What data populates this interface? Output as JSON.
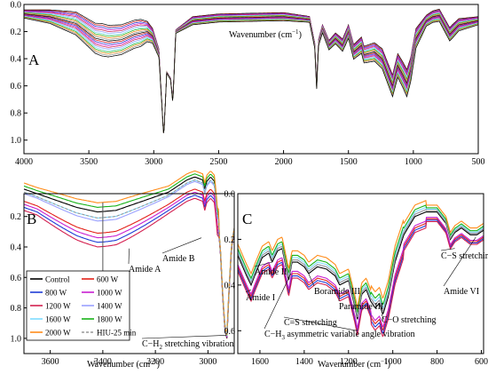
{
  "colors": {
    "control": "#000000",
    "w600": "#e32119",
    "w800": "#1f3cd6",
    "w1000": "#c81fd0",
    "w1200": "#d42050",
    "w1400": "#9aa0ff",
    "w1600": "#7fdcff",
    "w1800": "#19b319",
    "w2000": "#ff8c1a",
    "hiu": "#999999"
  },
  "chart_data": [
    {
      "panel_label": "A",
      "type": "line",
      "xlabel_prefix": "Wavenumber (cm",
      "xlabel_sup": "−1",
      "xlabel_suffix": ")",
      "xlim": [
        4000,
        500
      ],
      "ylim": [
        0.0,
        1.1
      ],
      "x_ticks": [
        "4000",
        "3500",
        "3000",
        "2500",
        "2000",
        "1500",
        "1000",
        "500"
      ],
      "x_tick_values": [
        4000,
        3500,
        3000,
        2500,
        2000,
        1500,
        1000,
        500
      ],
      "y_ticks": [
        "0.0",
        "0.2",
        "0.4",
        "0.6",
        "0.8",
        "1.0"
      ],
      "y_tick_values": [
        0,
        0.2,
        0.4,
        0.6,
        0.8,
        1.0
      ],
      "series_count": 21,
      "base_profile": [
        [
          4000,
          0.07
        ],
        [
          3800,
          0.09
        ],
        [
          3600,
          0.14
        ],
        [
          3450,
          0.25
        ],
        [
          3350,
          0.27
        ],
        [
          3250,
          0.26
        ],
        [
          3150,
          0.22
        ],
        [
          3050,
          0.2
        ],
        [
          3010,
          0.23
        ],
        [
          2960,
          0.36
        ],
        [
          2923,
          0.98
        ],
        [
          2900,
          0.5
        ],
        [
          2870,
          0.55
        ],
        [
          2853,
          0.72
        ],
        [
          2830,
          0.2
        ],
        [
          2700,
          0.12
        ],
        [
          2500,
          0.1
        ],
        [
          2000,
          0.09
        ],
        [
          1800,
          0.11
        ],
        [
          1760,
          0.3
        ],
        [
          1745,
          0.6
        ],
        [
          1730,
          0.28
        ],
        [
          1700,
          0.18
        ],
        [
          1650,
          0.3
        ],
        [
          1600,
          0.25
        ],
        [
          1545,
          0.3
        ],
        [
          1500,
          0.2
        ],
        [
          1460,
          0.35
        ],
        [
          1400,
          0.3
        ],
        [
          1380,
          0.37
        ],
        [
          1300,
          0.35
        ],
        [
          1240,
          0.4
        ],
        [
          1160,
          0.6
        ],
        [
          1120,
          0.45
        ],
        [
          1080,
          0.52
        ],
        [
          1050,
          0.58
        ],
        [
          1020,
          0.48
        ],
        [
          980,
          0.25
        ],
        [
          900,
          0.12
        ],
        [
          850,
          0.09
        ],
        [
          800,
          0.08
        ],
        [
          720,
          0.22
        ],
        [
          650,
          0.15
        ],
        [
          500,
          0.12
        ]
      ],
      "spread_profile": [
        [
          4000,
          0.03
        ],
        [
          3800,
          0.05
        ],
        [
          3400,
          0.12
        ],
        [
          3100,
          0.1
        ],
        [
          3000,
          0.05
        ],
        [
          2960,
          0.03
        ],
        [
          2930,
          0.0
        ],
        [
          2700,
          0.03
        ],
        [
          2000,
          0.03
        ],
        [
          1760,
          0.02
        ],
        [
          1700,
          0.03
        ],
        [
          1400,
          0.06
        ],
        [
          1160,
          0.08
        ],
        [
          1050,
          0.1
        ],
        [
          900,
          0.04
        ],
        [
          700,
          0.05
        ],
        [
          500,
          0.03
        ]
      ]
    },
    {
      "panel_label": "B",
      "type": "line",
      "xlabel_prefix": "Wavenumber (cm",
      "xlabel_sup": "−1",
      "xlabel_suffix": ")",
      "xlim": [
        3700,
        2900
      ],
      "ylim": [
        0.05,
        1.1
      ],
      "x_ticks": [
        "3600",
        "3400",
        "3200",
        "3000"
      ],
      "x_tick_values": [
        3600,
        3400,
        3200,
        3000
      ],
      "y_ticks": [
        "0.2",
        "0.4",
        "0.6",
        "0.8",
        "1.0"
      ],
      "y_tick_values": [
        0.2,
        0.4,
        0.6,
        0.8,
        1.0
      ],
      "vline_x": 3400,
      "series": [
        {
          "name": "Control",
          "color": "#000000",
          "base_off": 0.28,
          "depth": 0.0,
          "dash": ""
        },
        {
          "name": "600 W",
          "color": "#e32119",
          "base_off": 0.36,
          "depth": 0.06,
          "dash": ""
        },
        {
          "name": "800 W",
          "color": "#1f3cd6",
          "base_off": 0.4,
          "depth": 0.08,
          "dash": ""
        },
        {
          "name": "1000 W",
          "color": "#c81fd0",
          "base_off": 0.38,
          "depth": 0.07,
          "dash": ""
        },
        {
          "name": "1200 W",
          "color": "#d42050",
          "base_off": 0.42,
          "depth": 0.09,
          "dash": ""
        },
        {
          "name": "1400 W",
          "color": "#9aa0ff",
          "base_off": 0.31,
          "depth": 0.03,
          "dash": ""
        },
        {
          "name": "1600 W",
          "color": "#7fdcff",
          "base_off": 0.3,
          "depth": 0.02,
          "dash": ""
        },
        {
          "name": "1800 W",
          "color": "#19b319",
          "base_off": 0.26,
          "depth": -0.01,
          "dash": ""
        },
        {
          "name": "2000 W",
          "color": "#ff8c1a",
          "base_off": 0.24,
          "depth": -0.02,
          "dash": ""
        },
        {
          "name": "HIU-25 min",
          "color": "#999999",
          "base_off": 0.3,
          "depth": 0.02,
          "dash": "3,2"
        }
      ],
      "annotations": [
        {
          "text": "Amide A",
          "x": 3300,
          "y": 0.41
        },
        {
          "text": "Amide B",
          "x": 3025,
          "y": 0.34
        },
        {
          "text": "C−H",
          "sub": "2",
          "suffix": " stretching vibration",
          "x": 2930,
          "y": 0.98
        }
      ]
    },
    {
      "panel_label": "C",
      "type": "line",
      "xlabel_prefix": "Wavenumber (cm",
      "xlabel_sup": "−1",
      "xlabel_suffix": ")",
      "xlim": [
        1700,
        590
      ],
      "ylim": [
        0.0,
        0.7
      ],
      "x_ticks": [
        "1600",
        "1400",
        "1200",
        "1000",
        "800",
        "600"
      ],
      "x_tick_values": [
        1600,
        1400,
        1200,
        1000,
        800,
        600
      ],
      "y_ticks": [
        "0.0",
        "0.2",
        "0.4",
        "0.6"
      ],
      "y_tick_values": [
        0.0,
        0.2,
        0.4,
        0.6
      ],
      "annotations": [
        {
          "text": "Amide I",
          "x": 1640,
          "y": 0.42
        },
        {
          "text": "Amide II",
          "x": 1545,
          "y": 0.3
        },
        {
          "text": "Boramide III",
          "x": 1385,
          "y": 0.34
        },
        {
          "text": "Paramide III",
          "x": 1240,
          "y": 0.43
        },
        {
          "text": "C=S stretching",
          "x": 1160,
          "y": 0.6
        },
        {
          "text": "C−O stretching",
          "x": 1040,
          "y": 0.55
        },
        {
          "text": "C−H",
          "sub": "3",
          "suffix": " asymmetric variable angle vibration",
          "x": 1460,
          "y": 0.35
        },
        {
          "text": "C−S stretching",
          "x": 720,
          "y": 0.24
        },
        {
          "text": "Amide VI",
          "x": 625,
          "y": 0.19
        }
      ]
    }
  ]
}
